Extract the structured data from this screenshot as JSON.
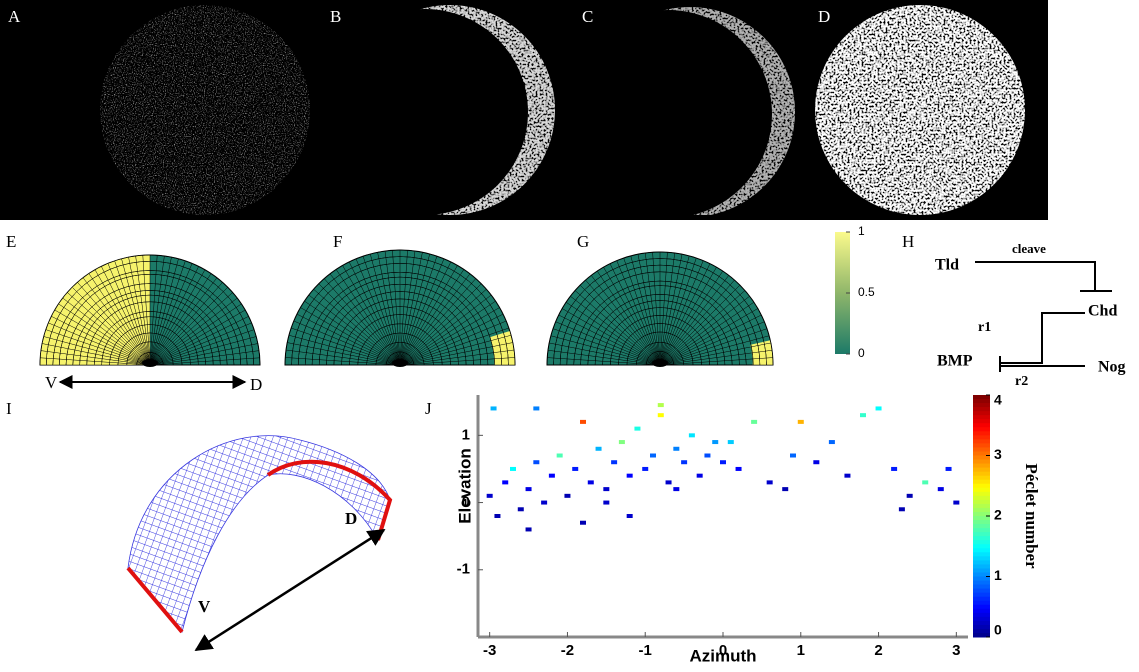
{
  "panel_labels": [
    "A",
    "B",
    "C",
    "D",
    "E",
    "F",
    "G",
    "H",
    "I",
    "J"
  ],
  "panel_e_axis": {
    "left": "V",
    "right": "D"
  },
  "colorbar": {
    "lim": [
      0,
      1
    ],
    "ticks": [
      0,
      0.5,
      1
    ]
  },
  "network": {
    "nodes": [
      "Tld",
      "Chd",
      "BMP",
      "Nog"
    ],
    "edges": [
      "cleave",
      "r1",
      "r2"
    ]
  },
  "panel_i_axis": {
    "left": "V",
    "right": "D"
  },
  "chart_data": {
    "type": "scatter",
    "xlabel": "Azimuth",
    "ylabel": "Elevation",
    "colorbar_label": "Péclet number",
    "x": [
      -3.0,
      -2.9,
      -2.8,
      -2.7,
      -2.6,
      -2.5,
      -2.4,
      -2.3,
      -2.2,
      -2.1,
      -2.0,
      -1.9,
      -1.8,
      -1.7,
      -1.6,
      -1.5,
      -1.4,
      -1.3,
      -1.2,
      -1.1,
      -1.0,
      -0.9,
      -0.8,
      -0.7,
      -0.6,
      -0.5,
      -0.4,
      -0.3,
      -0.2,
      -0.1,
      0.0,
      0.2,
      0.4,
      0.6,
      0.8,
      1.0,
      1.2,
      1.4,
      1.6,
      1.8,
      2.0,
      2.2,
      2.4,
      2.6,
      2.8,
      3.0,
      -2.95,
      -2.4,
      -1.8,
      -1.2,
      -0.6,
      0.1,
      0.9,
      2.3,
      2.9,
      -2.5,
      -1.5,
      -0.8
    ],
    "values": [
      0.1,
      -0.2,
      0.3,
      0.5,
      -0.1,
      0.2,
      0.6,
      0.0,
      0.4,
      0.7,
      0.1,
      0.5,
      1.2,
      0.3,
      0.8,
      0.2,
      0.6,
      0.9,
      0.4,
      1.1,
      0.5,
      0.7,
      1.3,
      0.3,
      0.8,
      0.6,
      1.0,
      0.4,
      0.7,
      0.9,
      0.6,
      0.5,
      1.2,
      0.3,
      0.2,
      1.2,
      0.6,
      0.9,
      0.4,
      1.3,
      1.4,
      0.5,
      0.1,
      0.3,
      0.2,
      0.0,
      1.4,
      1.4,
      -0.3,
      -0.2,
      0.2,
      0.9,
      0.7,
      -0.1,
      0.5,
      -0.4,
      0.0,
      1.45
    ],
    "peclet": [
      0.3,
      0.2,
      0.5,
      1.5,
      0.2,
      0.4,
      0.8,
      0.3,
      0.5,
      1.8,
      0.2,
      0.6,
      3.2,
      0.4,
      1.2,
      0.3,
      0.7,
      2.0,
      0.5,
      1.6,
      0.6,
      0.9,
      2.5,
      0.3,
      1.0,
      0.7,
      1.4,
      0.4,
      0.8,
      1.1,
      0.6,
      0.5,
      1.9,
      0.3,
      0.2,
      2.8,
      0.4,
      0.9,
      0.3,
      1.7,
      1.5,
      0.6,
      0.2,
      1.8,
      0.4,
      0.3,
      1.2,
      1.0,
      0.2,
      0.3,
      0.4,
      1.3,
      0.9,
      0.2,
      0.6,
      0.2,
      0.3,
      2.2
    ],
    "xlim": [
      -3.15,
      3.15
    ],
    "ylim": [
      -2,
      1.6
    ],
    "xticks": [
      -3,
      -2,
      -1,
      0,
      1,
      2,
      3
    ],
    "yticks": [
      -1,
      0,
      1
    ],
    "clim": [
      0,
      4
    ],
    "cticks": [
      0,
      1,
      2,
      3,
      4
    ]
  }
}
